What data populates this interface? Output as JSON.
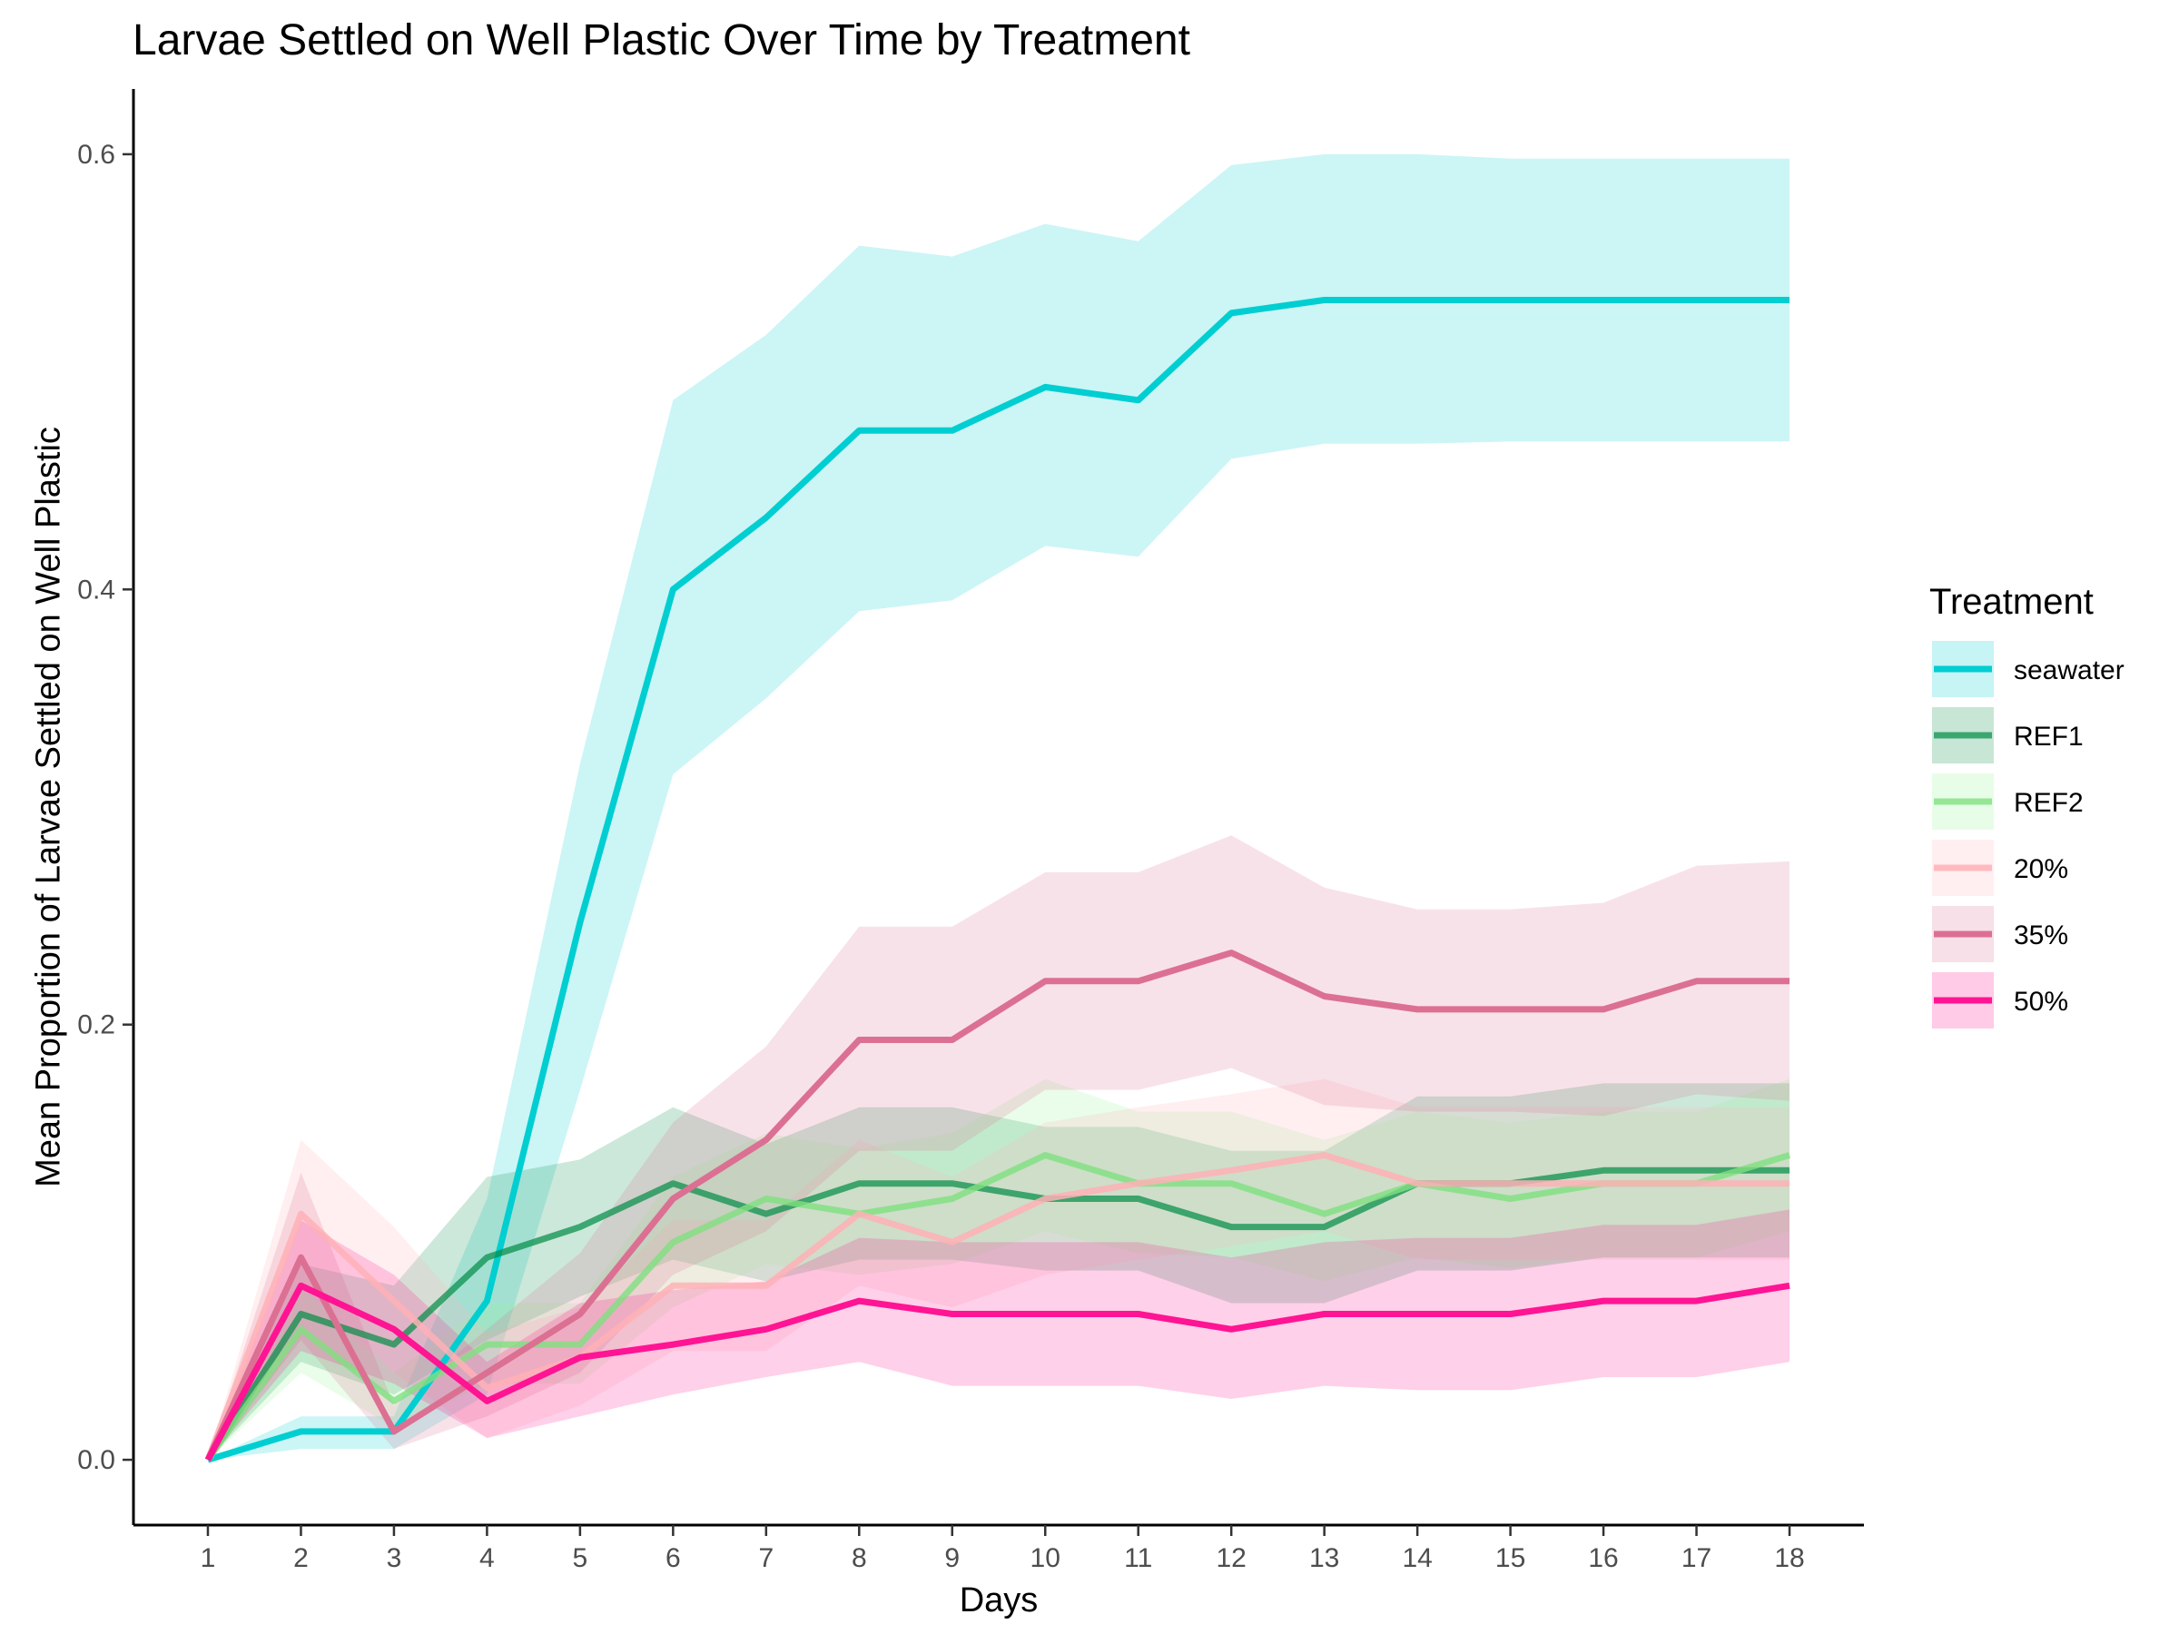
{
  "chart_data": {
    "type": "line",
    "title": "Larvae Settled on Well Plastic Over Time by Treatment",
    "xlabel": "Days",
    "ylabel": "Mean Proportion of Larvae Settled on Well Plastic",
    "x": [
      1,
      2,
      3,
      4,
      5,
      6,
      7,
      8,
      9,
      10,
      11,
      12,
      13,
      14,
      15,
      16,
      17,
      18
    ],
    "xlim": [
      0.2,
      18.8
    ],
    "ylim": [
      -0.03,
      0.63
    ],
    "yticks": [
      0.0,
      0.2,
      0.4,
      0.6
    ],
    "y_tick_labels": [
      "0.0",
      "0.2",
      "0.4",
      "0.6"
    ],
    "grid": false,
    "legend": {
      "title": "Treatment",
      "position": "right",
      "entries": [
        "seawater",
        "REF1",
        "REF2",
        "20%",
        "35%",
        "50%"
      ]
    },
    "series": [
      {
        "name": "seawater",
        "color": "#00CED1",
        "band_color": "#00CED1",
        "band_opacity": 0.2,
        "line_opacity": 1.0,
        "values": [
          0.0,
          0.013,
          0.013,
          0.073,
          0.247,
          0.4,
          0.433,
          0.473,
          0.473,
          0.493,
          0.487,
          0.527,
          0.533,
          0.533,
          0.533,
          0.533,
          0.533,
          0.533
        ],
        "lower": [
          0.0,
          0.005,
          0.005,
          0.03,
          0.17,
          0.315,
          0.35,
          0.39,
          0.395,
          0.42,
          0.415,
          0.46,
          0.467,
          0.467,
          0.468,
          0.468,
          0.468,
          0.468
        ],
        "upper": [
          0.0,
          0.02,
          0.02,
          0.12,
          0.32,
          0.487,
          0.517,
          0.558,
          0.553,
          0.568,
          0.56,
          0.595,
          0.6,
          0.6,
          0.598,
          0.598,
          0.598,
          0.598
        ]
      },
      {
        "name": "REF1",
        "color": "#008B45",
        "band_color": "#008B45",
        "band_opacity": 0.2,
        "line_opacity": 0.7,
        "values": [
          0.0,
          0.067,
          0.053,
          0.093,
          0.107,
          0.127,
          0.113,
          0.127,
          0.127,
          0.12,
          0.12,
          0.107,
          0.107,
          0.127,
          0.127,
          0.133,
          0.133,
          0.133
        ],
        "lower": [
          0.0,
          0.045,
          0.03,
          0.055,
          0.075,
          0.092,
          0.082,
          0.092,
          0.092,
          0.087,
          0.087,
          0.072,
          0.072,
          0.087,
          0.087,
          0.093,
          0.093,
          0.093
        ],
        "upper": [
          0.0,
          0.09,
          0.08,
          0.13,
          0.138,
          0.162,
          0.145,
          0.162,
          0.162,
          0.153,
          0.153,
          0.142,
          0.142,
          0.167,
          0.167,
          0.173,
          0.173,
          0.173
        ]
      },
      {
        "name": "REF2",
        "color": "#7FE07F",
        "band_color": "#98F598",
        "band_opacity": 0.2,
        "line_opacity": 0.8,
        "values": [
          0.0,
          0.06,
          0.027,
          0.053,
          0.053,
          0.1,
          0.12,
          0.113,
          0.12,
          0.14,
          0.127,
          0.127,
          0.113,
          0.127,
          0.12,
          0.127,
          0.127,
          0.14
        ],
        "lower": [
          0.0,
          0.04,
          0.015,
          0.035,
          0.035,
          0.07,
          0.09,
          0.085,
          0.09,
          0.105,
          0.095,
          0.093,
          0.082,
          0.093,
          0.088,
          0.093,
          0.093,
          0.105
        ],
        "upper": [
          0.0,
          0.08,
          0.04,
          0.072,
          0.072,
          0.13,
          0.15,
          0.143,
          0.15,
          0.175,
          0.16,
          0.16,
          0.147,
          0.16,
          0.155,
          0.16,
          0.16,
          0.175
        ]
      },
      {
        "name": "20%",
        "color": "#FFB0B6",
        "band_color": "#FFB6C1",
        "band_opacity": 0.22,
        "line_opacity": 0.85,
        "values": [
          0.0,
          0.113,
          0.073,
          0.033,
          0.047,
          0.08,
          0.08,
          0.113,
          0.1,
          0.12,
          0.127,
          0.133,
          0.14,
          0.127,
          0.127,
          0.127,
          0.127,
          0.127
        ],
        "lower": [
          0.0,
          0.08,
          0.04,
          0.01,
          0.025,
          0.05,
          0.05,
          0.08,
          0.07,
          0.085,
          0.092,
          0.098,
          0.105,
          0.092,
          0.092,
          0.092,
          0.092,
          0.092
        ],
        "upper": [
          0.0,
          0.147,
          0.107,
          0.058,
          0.07,
          0.11,
          0.11,
          0.147,
          0.13,
          0.155,
          0.162,
          0.168,
          0.175,
          0.162,
          0.162,
          0.162,
          0.162,
          0.162
        ]
      },
      {
        "name": "35%",
        "color": "#DB7093",
        "band_color": "#DB7093",
        "band_opacity": 0.2,
        "line_opacity": 1.0,
        "values": [
          0.0,
          0.093,
          0.013,
          0.04,
          0.067,
          0.12,
          0.147,
          0.193,
          0.193,
          0.22,
          0.22,
          0.233,
          0.213,
          0.207,
          0.207,
          0.207,
          0.22,
          0.22
        ],
        "lower": [
          0.0,
          0.055,
          0.005,
          0.02,
          0.04,
          0.085,
          0.105,
          0.142,
          0.142,
          0.17,
          0.17,
          0.18,
          0.163,
          0.16,
          0.16,
          0.158,
          0.168,
          0.165
        ],
        "upper": [
          0.0,
          0.132,
          0.025,
          0.06,
          0.095,
          0.155,
          0.19,
          0.245,
          0.245,
          0.27,
          0.27,
          0.287,
          0.263,
          0.253,
          0.253,
          0.256,
          0.273,
          0.275
        ]
      },
      {
        "name": "50%",
        "color": "#FF1493",
        "band_color": "#FF1493",
        "band_opacity": 0.2,
        "line_opacity": 1.0,
        "values": [
          0.0,
          0.08,
          0.06,
          0.027,
          0.047,
          0.053,
          0.06,
          0.073,
          0.067,
          0.067,
          0.067,
          0.06,
          0.067,
          0.067,
          0.067,
          0.073,
          0.073,
          0.08
        ],
        "lower": [
          0.0,
          0.05,
          0.035,
          0.01,
          0.02,
          0.03,
          0.038,
          0.045,
          0.034,
          0.034,
          0.034,
          0.028,
          0.034,
          0.032,
          0.032,
          0.038,
          0.038,
          0.045
        ],
        "upper": [
          0.0,
          0.11,
          0.085,
          0.045,
          0.072,
          0.078,
          0.082,
          0.102,
          0.1,
          0.1,
          0.1,
          0.093,
          0.1,
          0.102,
          0.102,
          0.108,
          0.108,
          0.115
        ]
      }
    ]
  }
}
